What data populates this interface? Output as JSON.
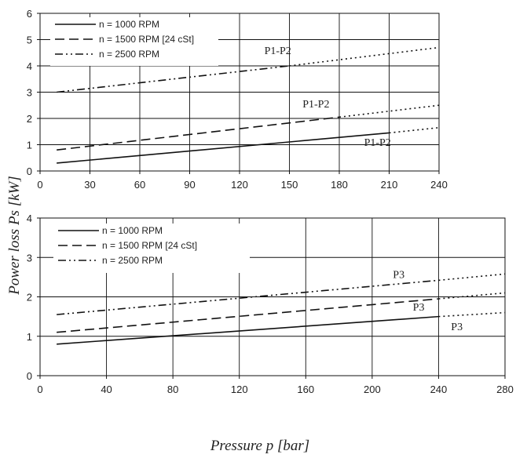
{
  "ylabel": "Power loss Ps [kW]",
  "xlabel": "Pressure p [bar]",
  "chart_data": [
    {
      "type": "line",
      "title": "",
      "xlim": [
        0,
        240
      ],
      "ylim": [
        0,
        6
      ],
      "xticks": [
        "0",
        "30",
        "60",
        "90",
        "120",
        "150",
        "180",
        "210",
        "240"
      ],
      "yticks": [
        "0",
        "1",
        "2",
        "3",
        "4",
        "5",
        "6"
      ],
      "grid": true,
      "legend_position": "top-left",
      "series": [
        {
          "name": "n = 1000 RPM",
          "style": "solid",
          "x": [
            10,
            210
          ],
          "y": [
            0.3,
            1.45
          ],
          "ext_x": [
            210,
            240
          ],
          "ext_y": [
            1.45,
            1.65
          ]
        },
        {
          "name": "n = 1500 RPM [24 cSt]",
          "style": "dashed",
          "x": [
            10,
            180
          ],
          "y": [
            0.8,
            2.05
          ],
          "ext_x": [
            180,
            240
          ],
          "ext_y": [
            2.05,
            2.5
          ]
        },
        {
          "name": "n = 2500 RPM",
          "style": "dashdotdot",
          "x": [
            10,
            150
          ],
          "y": [
            3.0,
            4.0
          ],
          "ext_x": [
            150,
            240
          ],
          "ext_y": [
            4.0,
            4.7
          ]
        }
      ],
      "annotations": [
        {
          "text": "P1-P2",
          "x": 143,
          "y": 4.45
        },
        {
          "text": "P1-P2",
          "x": 166,
          "y": 2.42
        },
        {
          "text": "P1-P2",
          "x": 203,
          "y": 0.95
        }
      ]
    },
    {
      "type": "line",
      "title": "",
      "xlim": [
        0,
        280
      ],
      "ylim": [
        0,
        4
      ],
      "xticks": [
        "0",
        "40",
        "80",
        "120",
        "160",
        "200",
        "240",
        "280"
      ],
      "yticks": [
        "0",
        "1",
        "2",
        "3",
        "4"
      ],
      "grid": true,
      "legend_position": "top-left",
      "series": [
        {
          "name": "n = 1000 RPM",
          "style": "solid",
          "x": [
            10,
            240
          ],
          "y": [
            0.8,
            1.5
          ],
          "ext_x": [
            240,
            280
          ],
          "ext_y": [
            1.5,
            1.6
          ]
        },
        {
          "name": "n = 1500 RPM [24 cSt]",
          "style": "dashed",
          "x": [
            10,
            240
          ],
          "y": [
            1.1,
            1.95
          ],
          "ext_x": [
            240,
            280
          ],
          "ext_y": [
            1.95,
            2.1
          ]
        },
        {
          "name": "n = 2500 RPM",
          "style": "dashdotdot",
          "x": [
            10,
            240
          ],
          "y": [
            1.55,
            2.42
          ],
          "ext_x": [
            240,
            280
          ],
          "ext_y": [
            2.42,
            2.58
          ]
        }
      ],
      "annotations": [
        {
          "text": "P3",
          "x": 216,
          "y": 2.48
        },
        {
          "text": "P3",
          "x": 228,
          "y": 1.65
        },
        {
          "text": "P3",
          "x": 251,
          "y": 1.15
        }
      ]
    }
  ]
}
